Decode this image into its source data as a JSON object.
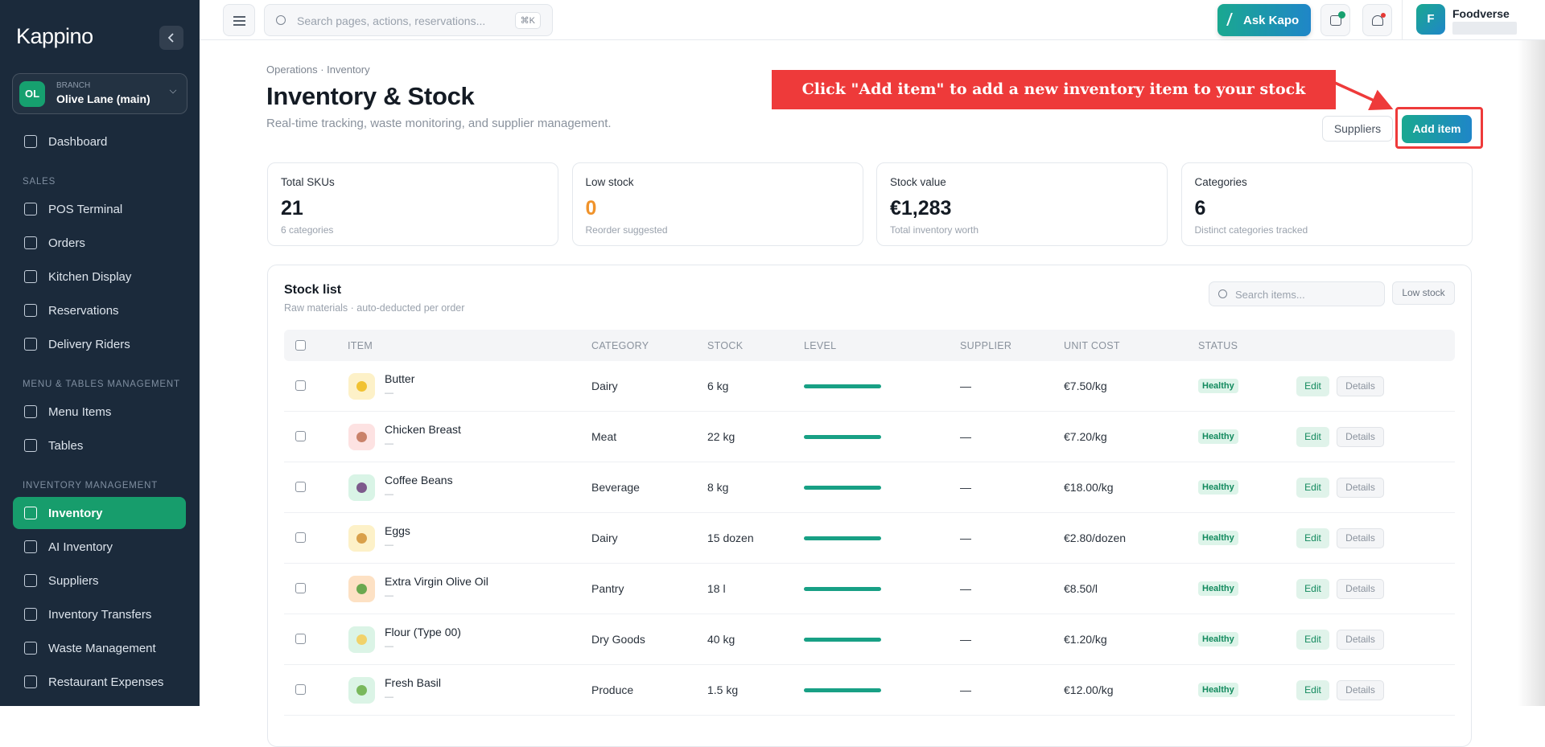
{
  "sidebar": {
    "logo": "Kappino",
    "branch": {
      "badge": "OL",
      "label": "BRANCH",
      "name": "Olive Lane (main)"
    },
    "sections": [
      {
        "items": [
          {
            "label": "Dashboard"
          }
        ]
      },
      {
        "title": "SALES",
        "items": [
          {
            "label": "POS Terminal"
          },
          {
            "label": "Orders"
          },
          {
            "label": "Kitchen Display"
          },
          {
            "label": "Reservations"
          },
          {
            "label": "Delivery Riders"
          }
        ]
      },
      {
        "title": "MENU & TABLES MANAGEMENT",
        "items": [
          {
            "label": "Menu Items"
          },
          {
            "label": "Tables"
          }
        ]
      },
      {
        "title": "INVENTORY MANAGEMENT",
        "items": [
          {
            "label": "Inventory",
            "active": true
          },
          {
            "label": "AI Inventory"
          },
          {
            "label": "Suppliers"
          },
          {
            "label": "Inventory Transfers"
          },
          {
            "label": "Waste Management"
          },
          {
            "label": "Restaurant Expenses"
          }
        ]
      }
    ]
  },
  "topbar": {
    "search_placeholder": "Search pages, actions, reservations...",
    "shortcut": "⌘K",
    "ask_button": "Ask Kapo",
    "profile": {
      "initial": "F",
      "name": "Foodverse"
    }
  },
  "header": {
    "breadcrumb": "Operations · Inventory",
    "title": "Inventory & Stock",
    "subtitle": "Real-time tracking, waste monitoring, and supplier management.",
    "buttons": [
      "Suppliers",
      "Add item"
    ]
  },
  "annotation": {
    "text": "Click \"Add item\" to add a new inventory item to your stock"
  },
  "stats": [
    {
      "label": "Total SKUs",
      "value": "21",
      "sub": "6 categories"
    },
    {
      "label": "Low stock",
      "value": "0",
      "sub": "Reorder suggested"
    },
    {
      "label": "Stock value",
      "value": "€1,283",
      "sub": "Total inventory worth"
    },
    {
      "label": "Categories",
      "value": "6",
      "sub": "Distinct categories tracked"
    }
  ],
  "table": {
    "title": "Stock list",
    "subtitle": "Raw materials · auto-deducted per order",
    "search_placeholder": "Search items...",
    "filter": "Low stock",
    "columns": [
      "ITEM",
      "CATEGORY",
      "STOCK",
      "LEVEL",
      "SUPPLIER",
      "UNIT COST",
      "STATUS"
    ],
    "actions": [
      "Edit",
      "Details"
    ],
    "rows": [
      {
        "name": "Butter",
        "note": "—",
        "category": "Dairy",
        "stock": "6 kg",
        "supplier": "—",
        "unit_cost": "€7.50/kg",
        "status": "Healthy"
      },
      {
        "name": "Chicken Breast",
        "note": "—",
        "category": "Meat",
        "stock": "22 kg",
        "supplier": "—",
        "unit_cost": "€7.20/kg",
        "status": "Healthy"
      },
      {
        "name": "Coffee Beans",
        "note": "—",
        "category": "Beverage",
        "stock": "8 kg",
        "supplier": "—",
        "unit_cost": "€18.00/kg",
        "status": "Healthy"
      },
      {
        "name": "Eggs",
        "note": "—",
        "category": "Dairy",
        "stock": "15 dozen",
        "supplier": "—",
        "unit_cost": "€2.80/dozen",
        "status": "Healthy"
      },
      {
        "name": "Extra Virgin Olive Oil",
        "note": "—",
        "category": "Pantry",
        "stock": "18 l",
        "supplier": "—",
        "unit_cost": "€8.50/l",
        "status": "Healthy"
      },
      {
        "name": "Flour (Type 00)",
        "note": "—",
        "category": "Dry Goods",
        "stock": "40 kg",
        "supplier": "—",
        "unit_cost": "€1.20/kg",
        "status": "Healthy"
      },
      {
        "name": "Fresh Basil",
        "note": "—",
        "category": "Produce",
        "stock": "1.5 kg",
        "supplier": "—",
        "unit_cost": "€12.00/kg",
        "status": "Healthy"
      }
    ]
  }
}
